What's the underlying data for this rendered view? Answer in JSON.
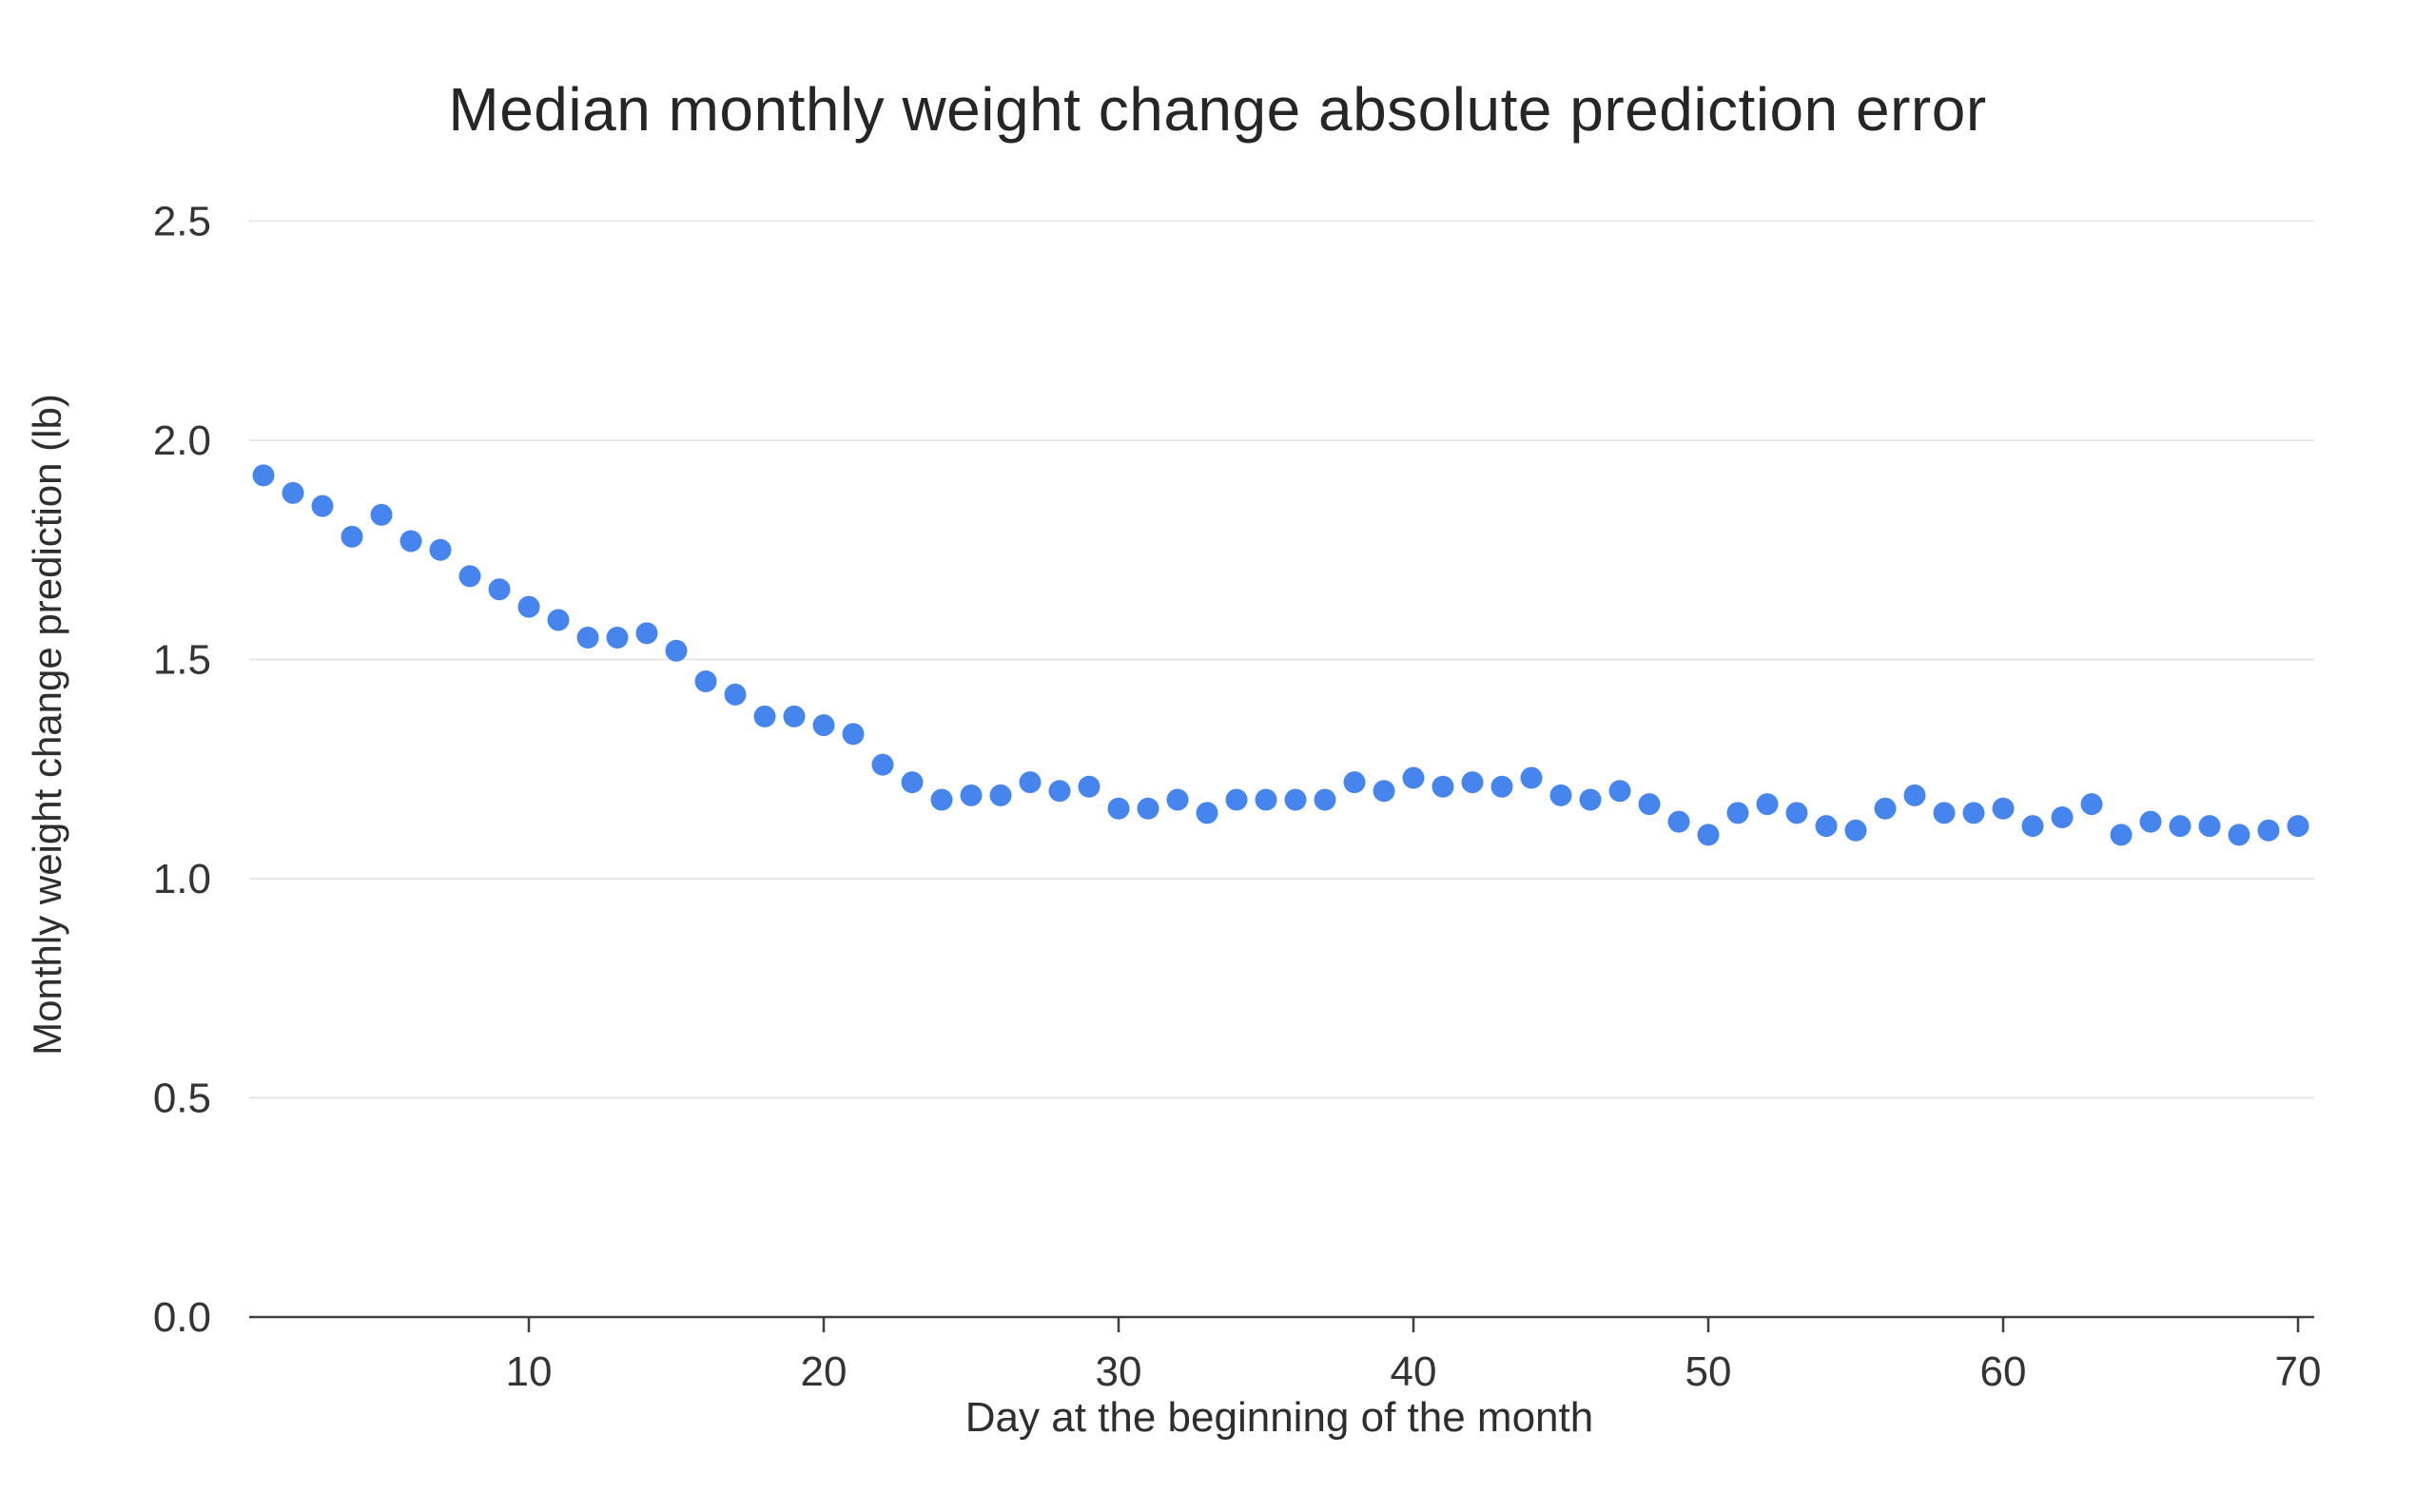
{
  "title": "Median monthly weight change absolute prediction error",
  "chart_data": {
    "type": "scatter",
    "title": "Median monthly weight change absolute prediction error",
    "xlabel": "Day at the beginning of the month",
    "ylabel": "Monthly weight change prediction (lb)",
    "x": [
      1,
      2,
      3,
      4,
      5,
      6,
      7,
      8,
      9,
      10,
      11,
      12,
      13,
      14,
      15,
      16,
      17,
      18,
      19,
      20,
      21,
      22,
      23,
      24,
      25,
      26,
      27,
      28,
      29,
      30,
      31,
      32,
      33,
      34,
      35,
      36,
      37,
      38,
      39,
      40,
      41,
      42,
      43,
      44,
      45,
      46,
      47,
      48,
      49,
      50,
      51,
      52,
      53,
      54,
      55,
      56,
      57,
      58,
      59,
      60,
      61,
      62,
      63,
      64,
      65,
      66,
      67,
      68,
      69,
      70
    ],
    "y": [
      1.92,
      1.88,
      1.85,
      1.78,
      1.83,
      1.77,
      1.75,
      1.69,
      1.66,
      1.62,
      1.59,
      1.55,
      1.55,
      1.56,
      1.52,
      1.45,
      1.42,
      1.37,
      1.37,
      1.35,
      1.33,
      1.26,
      1.22,
      1.18,
      1.19,
      1.19,
      1.22,
      1.2,
      1.21,
      1.16,
      1.16,
      1.18,
      1.15,
      1.18,
      1.18,
      1.18,
      1.18,
      1.22,
      1.2,
      1.23,
      1.21,
      1.22,
      1.21,
      1.23,
      1.19,
      1.18,
      1.2,
      1.17,
      1.13,
      1.1,
      1.15,
      1.17,
      1.15,
      1.12,
      1.11,
      1.16,
      1.19,
      1.15,
      1.15,
      1.16,
      1.12,
      1.14,
      1.17,
      1.1,
      1.13,
      1.12,
      1.12,
      1.1,
      1.11,
      1.12
    ],
    "xlim": [
      0.5,
      70.6
    ],
    "ylim": [
      0,
      2.5
    ],
    "x_ticks": [
      10,
      20,
      30,
      40,
      50,
      60,
      70
    ],
    "y_ticks": [
      0.0,
      0.5,
      1.0,
      1.5,
      2.0,
      2.5
    ],
    "y_tick_labels": [
      "0.0",
      "0.5",
      "1.0",
      "1.5",
      "2.0",
      "2.5"
    ],
    "grid": true,
    "legend": false,
    "colors": {
      "dot": "#4585ED",
      "gridline": "#e7e7e7",
      "axis_line": "#3f3f3f",
      "tick_text": "#343434",
      "title_text": "#262626"
    }
  }
}
